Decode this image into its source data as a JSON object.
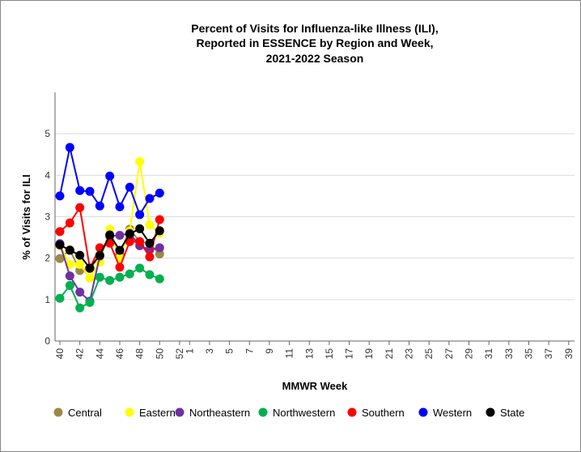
{
  "chart_data": {
    "type": "line",
    "title": [
      "Percent of Visits for Influenza-like Illness (ILI),",
      "Reported in ESSENCE by Region and Week,",
      "2021-2022 Season"
    ],
    "x_label": "MMWR Week",
    "y_label": "% of Visits for ILI",
    "categories": [
      40,
      null,
      42,
      null,
      44,
      null,
      46,
      null,
      48,
      null,
      50,
      null,
      52,
      1,
      null,
      3,
      null,
      5,
      null,
      7,
      null,
      9,
      null,
      11,
      null,
      13,
      null,
      15,
      null,
      17,
      null,
      19,
      null,
      21,
      null,
      23,
      null,
      25,
      null,
      27,
      null,
      29,
      null,
      31,
      null,
      33,
      null,
      35,
      null,
      37,
      null,
      39
    ],
    "ylim": [
      0,
      6
    ],
    "yticks": [
      0,
      1,
      2,
      3,
      4,
      5
    ],
    "grid": true,
    "series": [
      {
        "name": "Central",
        "color": "#9c8845",
        "values": [
          1.99,
          2.2,
          1.7,
          1.75,
          2.05,
          2.55,
          2.1,
          2.7,
          2.4,
          2.35,
          2.1,
          null,
          null,
          null,
          null,
          null,
          null,
          null,
          null,
          null,
          null,
          null,
          null,
          null,
          null,
          null,
          null,
          null,
          null,
          null,
          null,
          null,
          null,
          null,
          null,
          null,
          null,
          null,
          null,
          null,
          null,
          null,
          null,
          null,
          null,
          null,
          null,
          null,
          null,
          null,
          null,
          null
        ]
      },
      {
        "name": "Eastern",
        "color": "#ffff00",
        "values": [
          2.3,
          1.85,
          1.85,
          1.52,
          1.9,
          2.7,
          2.0,
          2.65,
          4.33,
          2.8,
          2.6,
          null,
          null,
          null,
          null,
          null,
          null,
          null,
          null,
          null,
          null,
          null,
          null,
          null,
          null,
          null,
          null,
          null,
          null,
          null,
          null,
          null,
          null,
          null,
          null,
          null,
          null,
          null,
          null,
          null,
          null,
          null,
          null,
          null,
          null,
          null,
          null,
          null,
          null,
          null,
          null,
          null
        ]
      },
      {
        "name": "Northeastern",
        "color": "#7030a0",
        "values": [
          2.35,
          1.57,
          1.18,
          0.96,
          2.05,
          2.53,
          2.55,
          2.6,
          2.3,
          2.2,
          2.25,
          null,
          null,
          null,
          null,
          null,
          null,
          null,
          null,
          null,
          null,
          null,
          null,
          null,
          null,
          null,
          null,
          null,
          null,
          null,
          null,
          null,
          null,
          null,
          null,
          null,
          null,
          null,
          null,
          null,
          null,
          null,
          null,
          null,
          null,
          null,
          null,
          null,
          null,
          null,
          null,
          null
        ]
      },
      {
        "name": "Northwestern",
        "color": "#00b050",
        "values": [
          1.03,
          1.34,
          0.8,
          0.93,
          1.54,
          1.46,
          1.54,
          1.62,
          1.76,
          1.6,
          1.5,
          null,
          null,
          null,
          null,
          null,
          null,
          null,
          null,
          null,
          null,
          null,
          null,
          null,
          null,
          null,
          null,
          null,
          null,
          null,
          null,
          null,
          null,
          null,
          null,
          null,
          null,
          null,
          null,
          null,
          null,
          null,
          null,
          null,
          null,
          null,
          null,
          null,
          null,
          null,
          null,
          null
        ]
      },
      {
        "name": "Southern",
        "color": "#ff0000",
        "values": [
          2.64,
          2.85,
          3.22,
          1.76,
          2.25,
          2.36,
          1.78,
          2.4,
          2.4,
          2.03,
          2.93,
          null,
          null,
          null,
          null,
          null,
          null,
          null,
          null,
          null,
          null,
          null,
          null,
          null,
          null,
          null,
          null,
          null,
          null,
          null,
          null,
          null,
          null,
          null,
          null,
          null,
          null,
          null,
          null,
          null,
          null,
          null,
          null,
          null,
          null,
          null,
          null,
          null,
          null,
          null,
          null,
          null
        ]
      },
      {
        "name": "Western",
        "color": "#0000ff",
        "values": [
          3.5,
          4.67,
          3.63,
          3.61,
          3.26,
          3.98,
          3.24,
          3.71,
          3.05,
          3.44,
          3.57,
          null,
          null,
          null,
          null,
          null,
          null,
          null,
          null,
          null,
          null,
          null,
          null,
          null,
          null,
          null,
          null,
          null,
          null,
          null,
          null,
          null,
          null,
          null,
          null,
          null,
          null,
          null,
          null,
          null,
          null,
          null,
          null,
          null,
          null,
          null,
          null,
          null,
          null,
          null,
          null,
          null
        ]
      },
      {
        "name": "State",
        "color": "#000000",
        "values": [
          2.32,
          2.19,
          2.07,
          1.76,
          2.07,
          2.56,
          2.19,
          2.58,
          2.71,
          2.36,
          2.66,
          null,
          null,
          null,
          null,
          null,
          null,
          null,
          null,
          null,
          null,
          null,
          null,
          null,
          null,
          null,
          null,
          null,
          null,
          null,
          null,
          null,
          null,
          null,
          null,
          null,
          null,
          null,
          null,
          null,
          null,
          null,
          null,
          null,
          null,
          null,
          null,
          null,
          null,
          null,
          null,
          null
        ]
      }
    ]
  }
}
